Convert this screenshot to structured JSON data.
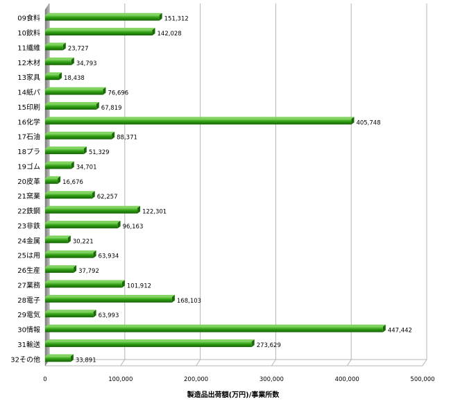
{
  "chart_data": {
    "type": "bar",
    "orientation": "horizontal",
    "categories": [
      "09食料",
      "10飲料",
      "11繊維",
      "12木材",
      "13家具",
      "14紙パ",
      "15印刷",
      "16化学",
      "17石油",
      "18プラ",
      "19ゴム",
      "20皮革",
      "21窯業",
      "22鉄鋼",
      "23非鉄",
      "24金属",
      "25は用",
      "26生産",
      "27業務",
      "28電子",
      "29電気",
      "30情報",
      "31輸送",
      "32その他"
    ],
    "values": [
      151312,
      142028,
      23727,
      34793,
      18438,
      76696,
      67819,
      405748,
      88371,
      51329,
      34701,
      16676,
      62257,
      122301,
      96163,
      30221,
      63934,
      37792,
      101912,
      168103,
      63993,
      447442,
      273629,
      33891
    ],
    "value_labels": [
      "151,312",
      "142,028",
      "23,727",
      "34,793",
      "18,438",
      "76,696",
      "67,819",
      "405,748",
      "88,371",
      "51,329",
      "34,701",
      "16,676",
      "62,257",
      "122,301",
      "96,163",
      "30,221",
      "63,934",
      "37,792",
      "101,912",
      "168,103",
      "63,993",
      "447,442",
      "273,629",
      "33,891"
    ],
    "xlabel": "製造品出荷額(万円)/事業所数",
    "xlim": [
      0,
      500000
    ],
    "x_ticks": [
      0,
      100000,
      200000,
      300000,
      400000,
      500000
    ],
    "x_tick_labels": [
      "0",
      "100,000",
      "200,000",
      "300,000",
      "400,000",
      "500,000"
    ],
    "grid": true,
    "legend": "none",
    "colors": {
      "bar": "#2e9e12",
      "bar_dark": "#1a6a08",
      "bar_light": "#7fd35e",
      "grid": "#b4b4b4",
      "wall": "#9a9a9a"
    }
  }
}
